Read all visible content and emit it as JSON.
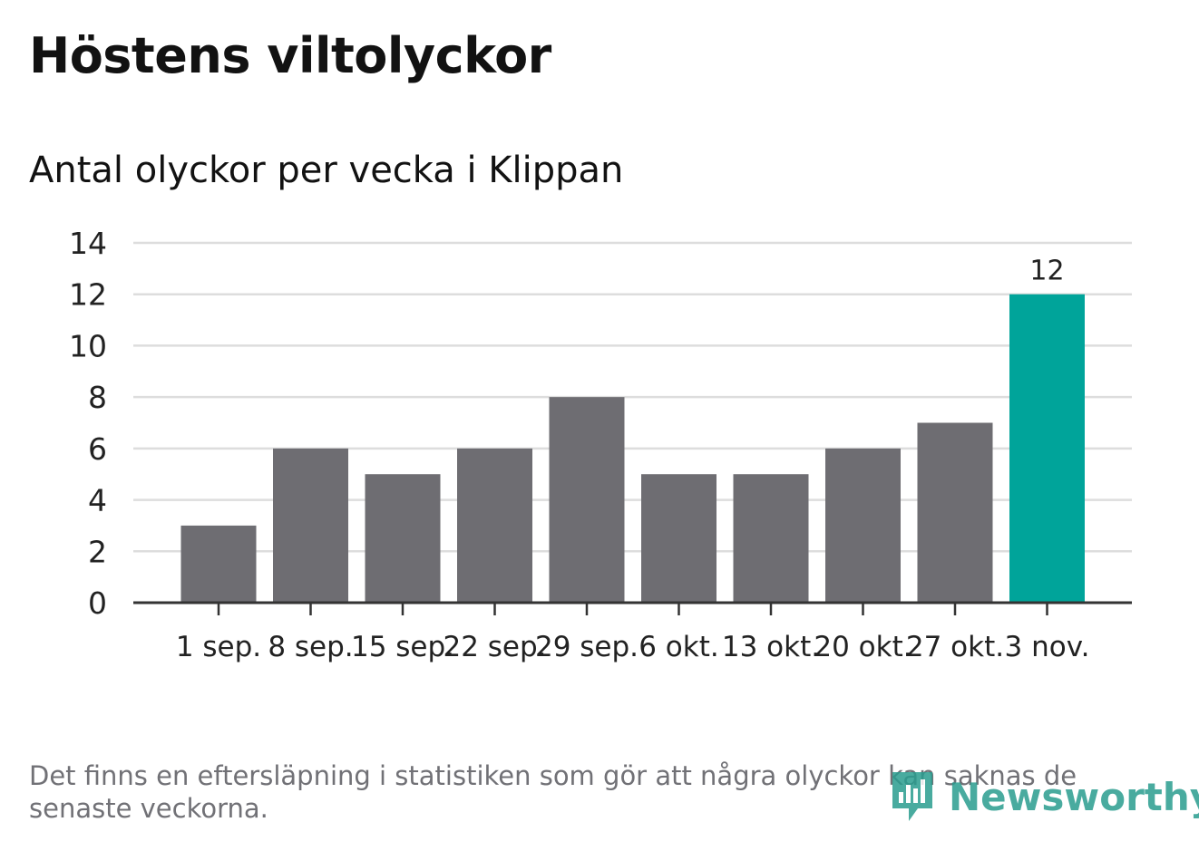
{
  "title": "Höstens viltolyckor",
  "subtitle": "Antal olyckor per vecka i Klippan",
  "footnote": "Det finns en eftersläpning i statistiken som gör att några olyckor kan saknas de senaste veckorna.",
  "brand": {
    "name": "Newsworthy",
    "icon": "newsworthy-logo-icon",
    "color": "#2a9d8f"
  },
  "colors": {
    "bar": "#6e6d72",
    "highlight": "#00a49a",
    "grid": "#dddddd",
    "axis": "#333333",
    "text": "#222222"
  },
  "chart_data": {
    "type": "bar",
    "categories": [
      "1 sep.",
      "8 sep.",
      "15 sep.",
      "22 sep.",
      "29 sep.",
      "6 okt.",
      "13 okt.",
      "20 okt.",
      "27 okt.",
      "3 nov."
    ],
    "values": [
      3,
      6,
      5,
      6,
      8,
      5,
      5,
      6,
      7,
      12
    ],
    "highlight_index": 9,
    "data_labels": [
      null,
      null,
      null,
      null,
      null,
      null,
      null,
      null,
      null,
      "12"
    ],
    "ylim": [
      0,
      14
    ],
    "yticks": [
      0,
      2,
      4,
      6,
      8,
      10,
      12,
      14
    ],
    "grid": true,
    "legend": false
  }
}
